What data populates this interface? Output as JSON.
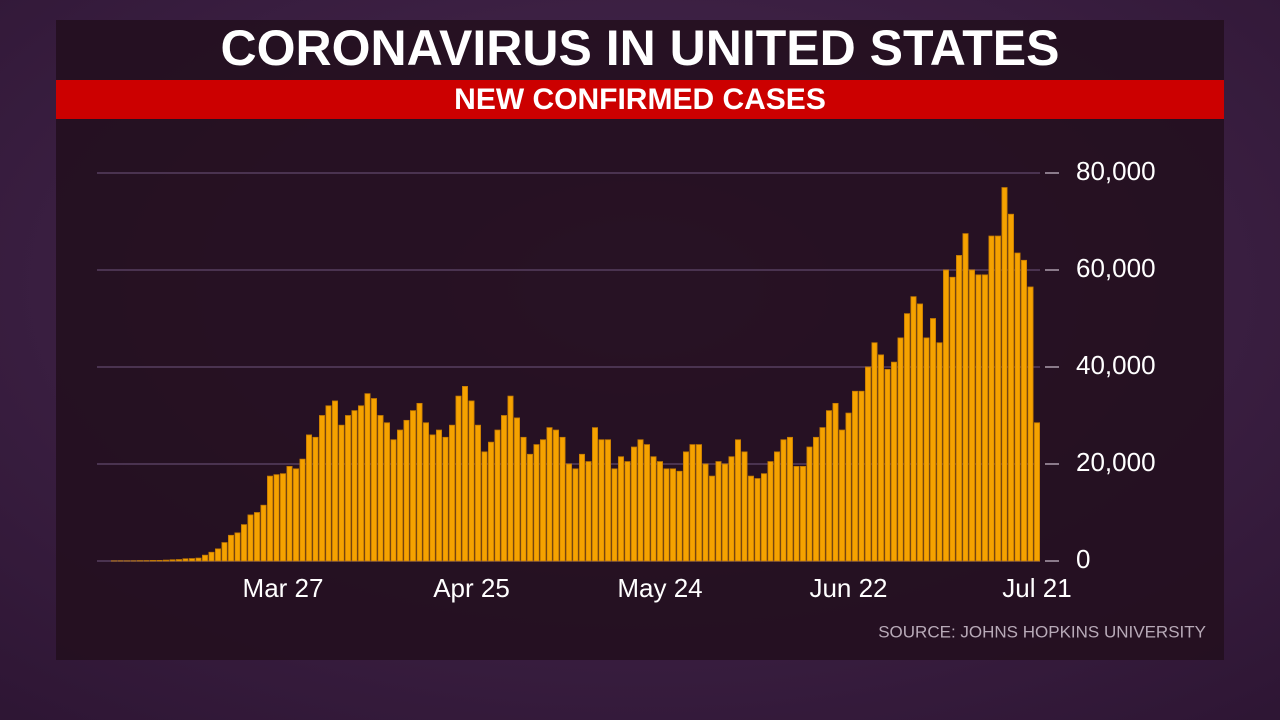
{
  "chart_data": {
    "type": "bar",
    "title": "CORONAVIRUS IN UNITED STATES",
    "subtitle": "NEW CONFIRMED CASES",
    "source": "SOURCE: JOHNS HOPKINS UNIVERSITY",
    "color": "#f5a200",
    "grid": true,
    "ylim": [
      0,
      80000
    ],
    "yticks": [
      {
        "value": 0,
        "label": "0"
      },
      {
        "value": 20000,
        "label": "20,000"
      },
      {
        "value": 40000,
        "label": "40,000"
      },
      {
        "value": 60000,
        "label": "60,000"
      },
      {
        "value": 80000,
        "label": "80,000"
      }
    ],
    "categories": [
      null,
      null,
      null,
      null,
      null,
      null,
      null,
      null,
      null,
      null,
      null,
      null,
      null,
      null,
      null,
      null,
      null,
      null,
      null,
      null,
      null,
      null,
      null,
      null,
      null,
      null,
      "Mar 27",
      null,
      null,
      null,
      null,
      null,
      null,
      null,
      null,
      null,
      null,
      null,
      null,
      null,
      null,
      null,
      null,
      null,
      null,
      null,
      null,
      null,
      null,
      null,
      null,
      null,
      null,
      null,
      null,
      "Apr 25",
      null,
      null,
      null,
      null,
      null,
      null,
      null,
      null,
      null,
      null,
      null,
      null,
      null,
      null,
      null,
      null,
      null,
      null,
      null,
      null,
      null,
      null,
      null,
      null,
      null,
      null,
      null,
      null,
      "May 24",
      null,
      null,
      null,
      null,
      null,
      null,
      null,
      null,
      null,
      null,
      null,
      null,
      null,
      null,
      null,
      null,
      null,
      null,
      null,
      null,
      null,
      null,
      null,
      null,
      null,
      null,
      null,
      null,
      "Jun 22",
      null,
      null,
      null,
      null,
      null,
      null,
      null,
      null,
      null,
      null,
      null,
      null,
      null,
      null,
      null,
      null,
      null,
      null,
      null,
      null,
      null,
      null,
      null,
      null,
      null,
      null,
      null,
      null,
      "Jul 21"
    ],
    "values": [
      20,
      30,
      25,
      30,
      60,
      70,
      110,
      120,
      180,
      250,
      300,
      460,
      500,
      600,
      1200,
      1800,
      2500,
      3800,
      5300,
      5800,
      7500,
      9500,
      10000,
      11500,
      17500,
      17800,
      18000,
      19500,
      19000,
      21000,
      26000,
      25500,
      30000,
      32000,
      33000,
      28000,
      30000,
      31000,
      32000,
      34500,
      33500,
      30000,
      28500,
      25000,
      27000,
      29000,
      31000,
      32500,
      28500,
      26000,
      27000,
      25500,
      28000,
      34000,
      36000,
      33000,
      28000,
      22500,
      24500,
      27000,
      30000,
      34000,
      29500,
      25500,
      22000,
      24000,
      25000,
      27500,
      27000,
      25500,
      20000,
      19000,
      22000,
      20500,
      27500,
      25000,
      25000,
      19000,
      21500,
      20500,
      23500,
      25000,
      24000,
      21500,
      20500,
      19000,
      19000,
      18500,
      22500,
      24000,
      24000,
      20000,
      17500,
      20500,
      20000,
      21500,
      25000,
      22500,
      17500,
      17000,
      18000,
      20500,
      22500,
      25000,
      25500,
      19500,
      19500,
      23500,
      25500,
      27500,
      31000,
      32500,
      27000,
      30500,
      35000,
      35000,
      40000,
      45000,
      42500,
      39500,
      41000,
      46000,
      51000,
      54500,
      53000,
      46000,
      50000,
      45000,
      60000,
      58500,
      63000,
      67500,
      60000,
      59000,
      59000,
      67000,
      67000,
      77000,
      71500,
      63500,
      62000,
      56500,
      28500
    ]
  }
}
